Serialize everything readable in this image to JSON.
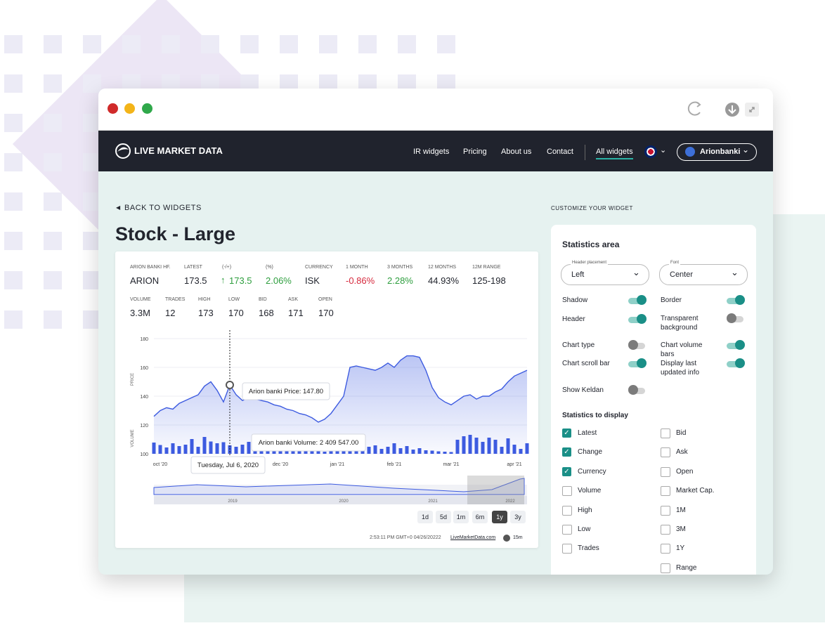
{
  "nav": {
    "brand": "LIVE MARKET DATA",
    "links": [
      "IR widgets",
      "Pricing",
      "About us",
      "Contact",
      "All widgets"
    ],
    "account": "Arionbanki"
  },
  "back": "BACK TO WIDGETS",
  "title": "Stock - Large",
  "stats": {
    "row1": [
      {
        "label": "ARION BANKI HF.",
        "value": "ARION"
      },
      {
        "label": "LATEST",
        "value": "173.5"
      },
      {
        "label": "(-/+)",
        "value": "173.5",
        "color": "#2e9e3e"
      },
      {
        "label": "(%)",
        "value": "2.06%",
        "color": "#2e9e3e"
      },
      {
        "label": "CURRENCY",
        "value": "ISK"
      },
      {
        "label": "1 MONTH",
        "value": "-0.86%",
        "color": "#d6283c"
      },
      {
        "label": "3 MONTHS",
        "value": "2.28%",
        "color": "#2e9e3e"
      },
      {
        "label": "12 MONTHS",
        "value": "44.93%"
      },
      {
        "label": "12M RANGE",
        "value": "125-198"
      }
    ],
    "row2": [
      {
        "label": "VOLUME",
        "value": "3.3M"
      },
      {
        "label": "TRADES",
        "value": "12"
      },
      {
        "label": "HIGH",
        "value": "173"
      },
      {
        "label": "LOW",
        "value": "170"
      },
      {
        "label": "BID",
        "value": "168"
      },
      {
        "label": "ASK",
        "value": "171"
      },
      {
        "label": "OPEN",
        "value": "170"
      }
    ]
  },
  "chart_data": {
    "type": "line",
    "y_label": "PRICE",
    "y2_label": "VOLUME",
    "ylim": [
      100,
      180
    ],
    "yticks": [
      100,
      120,
      140,
      160,
      180
    ],
    "y2lim": [
      0,
      8000000
    ],
    "grid": true,
    "categories": [
      null,
      "oct '20",
      null,
      null,
      null,
      null,
      null,
      null,
      null,
      null,
      null,
      null,
      null,
      null,
      null,
      null,
      null,
      null,
      null,
      null,
      "dec '20",
      null,
      null,
      null,
      null,
      null,
      null,
      null,
      null,
      "jan '21",
      null,
      null,
      null,
      null,
      null,
      null,
      null,
      null,
      "feb '21",
      null,
      null,
      null,
      null,
      null,
      null,
      null,
      null,
      "mar '21",
      null,
      null,
      null,
      null,
      null,
      null,
      null,
      null,
      null,
      "apr '21",
      null,
      null
    ],
    "series": [
      {
        "color": "#3d5be0",
        "values": [
          126,
          130,
          132,
          131,
          135,
          137,
          139,
          141,
          147,
          150,
          144,
          136,
          147.8,
          141,
          137,
          139,
          138,
          137,
          136,
          134,
          133,
          131,
          130,
          128,
          127,
          125,
          122,
          124,
          128,
          134,
          140,
          160,
          161,
          160,
          159,
          158,
          160,
          163,
          160,
          165,
          168,
          168,
          167,
          158,
          146,
          139,
          136,
          134,
          137,
          140,
          141,
          138,
          140,
          140,
          143,
          145,
          150,
          154,
          156,
          158
        ]
      },
      {
        "color": "#3d5be0",
        "axis": "y2",
        "values": [
          3200000,
          2500000,
          1800000,
          3000000,
          2200000,
          2600000,
          4200000,
          2000000,
          4800000,
          3500000,
          3000000,
          3300000,
          2409547,
          2000000,
          2600000,
          3400000,
          2400000,
          5000000,
          3800000,
          4400000,
          3200000,
          1000000,
          1400000,
          1000000,
          800000,
          900000,
          700000,
          600000,
          800000,
          1000000,
          1200000,
          1100000,
          2500000,
          1600000,
          2000000,
          2400000,
          1400000,
          2000000,
          3000000,
          1600000,
          2200000,
          1200000,
          1600000,
          1000000,
          900000,
          700000,
          600000,
          500000,
          4000000,
          5000000,
          5400000,
          4600000,
          3400000,
          4600000,
          4000000,
          2000000,
          4400000,
          2600000,
          1400000,
          3000000
        ]
      }
    ],
    "tooltips": {
      "price": "Arion banki Price: 147.80",
      "volume": "Arion banki Volume: 2 409 547.00",
      "date": "Tuesday, Jul 6, 2020"
    },
    "navigator": [
      "2019",
      "2020",
      "2021",
      "2022"
    ]
  },
  "ranges": [
    "1d",
    "5d",
    "1m",
    "6m",
    "1y",
    "3y"
  ],
  "footer": {
    "timestamp": "2:53:11 PM GMT+0 04/26/20222",
    "source": "LiveMarketData.com",
    "delay": "15m"
  },
  "customize": {
    "heading": "CUSTOMIZE YOUR WIDGET",
    "panel_title": "Statistics area",
    "selects": [
      {
        "label": "Header placement",
        "value": "Left"
      },
      {
        "label": "Font",
        "value": "Center"
      }
    ],
    "toggles_left": [
      {
        "label": "Shadow",
        "on": true
      },
      {
        "label": "Header",
        "on": true
      },
      {
        "label": "Chart type",
        "on": false
      },
      {
        "label": "Chart scroll bar",
        "on": true
      },
      {
        "label": "Show Keldan",
        "on": false
      }
    ],
    "toggles_right": [
      {
        "label": "Border",
        "on": true
      },
      {
        "label": "Transparent background",
        "on": false
      },
      {
        "label": "Chart volume bars",
        "on": true
      },
      {
        "label": "Display last updated info",
        "on": true
      }
    ],
    "stats_heading": "Statistics to display",
    "checks_left": [
      {
        "label": "Latest",
        "checked": true
      },
      {
        "label": "Change",
        "checked": true
      },
      {
        "label": "Currency",
        "checked": true
      },
      {
        "label": "Volume",
        "checked": false
      },
      {
        "label": "High",
        "checked": false
      },
      {
        "label": "Low",
        "checked": false
      },
      {
        "label": "Trades",
        "checked": false
      }
    ],
    "checks_right": [
      {
        "label": "Bid",
        "checked": false
      },
      {
        "label": "Ask",
        "checked": false
      },
      {
        "label": "Open",
        "checked": false
      },
      {
        "label": "Market Cap.",
        "checked": false
      },
      {
        "label": "1M",
        "checked": false
      },
      {
        "label": "3M",
        "checked": false
      },
      {
        "label": "1Y",
        "checked": false
      },
      {
        "label": "Range",
        "checked": false
      }
    ]
  }
}
